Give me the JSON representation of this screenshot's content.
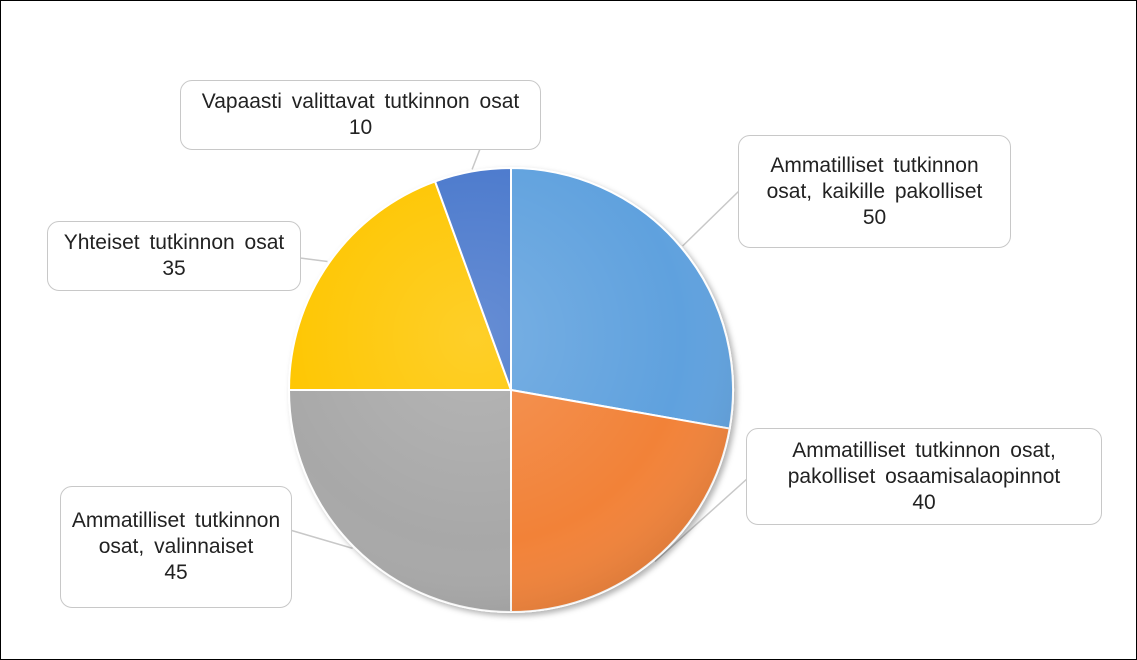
{
  "chart_data": {
    "type": "pie",
    "slices": [
      {
        "label": "Ammatilliset tutkinnon osat, kaikille pakolliset",
        "value": 50,
        "color": "#5ea1de"
      },
      {
        "label": "Ammatilliset tutkinnon osat, pakolliset osaamisalaopinnot",
        "value": 40,
        "color": "#f28238"
      },
      {
        "label": "Ammatilliset tutkinnon osat, valinnaiset",
        "value": 45,
        "color": "#a8a8a8"
      },
      {
        "label": "Yhteiset tutkinnon osat",
        "value": 35,
        "color": "#fec600"
      },
      {
        "label": "Vapaasti valittavat tutkinnon osat",
        "value": 10,
        "color": "#4a78cc"
      }
    ],
    "legend": "none",
    "data_labels": "callouts"
  }
}
